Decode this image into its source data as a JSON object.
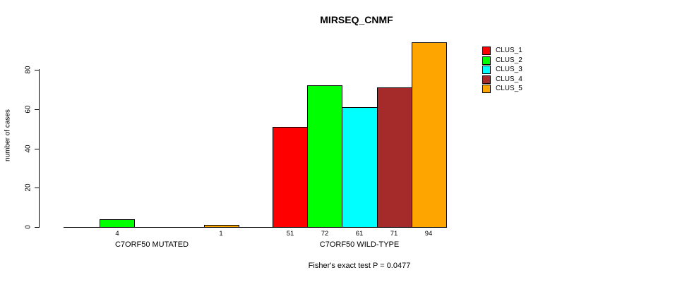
{
  "title": "MIRSEQ_CNMF",
  "y_axis": {
    "label": "number of cases",
    "ticks": [
      0,
      20,
      40,
      60,
      80
    ]
  },
  "footer": "Fisher's exact test P = 0.0477",
  "legend": {
    "items": [
      {
        "label": "CLUS_1",
        "color": "#FF0000"
      },
      {
        "label": "CLUS_2",
        "color": "#00FF00"
      },
      {
        "label": "CLUS_3",
        "color": "#00FFFF"
      },
      {
        "label": "CLUS_4",
        "color": "#A52A2A"
      },
      {
        "label": "CLUS_5",
        "color": "#FFA500"
      }
    ]
  },
  "chart_data": {
    "type": "bar",
    "title": "MIRSEQ_CNMF",
    "ylabel": "number of cases",
    "ylim": [
      0,
      94
    ],
    "yticks": [
      0,
      20,
      40,
      60,
      80
    ],
    "grid": false,
    "legend_position": "top-right",
    "series_names": [
      "CLUS_1",
      "CLUS_2",
      "CLUS_3",
      "CLUS_4",
      "CLUS_5"
    ],
    "series_colors": [
      "#FF0000",
      "#00FF00",
      "#00FFFF",
      "#A52A2A",
      "#FFA500"
    ],
    "groups": [
      {
        "label": "C7ORF50 MUTATED",
        "values": [
          0,
          4,
          0,
          0,
          1
        ],
        "value_labels": [
          "",
          "4",
          "",
          "",
          "1"
        ]
      },
      {
        "label": "C7ORF50 WILD-TYPE",
        "values": [
          51,
          72,
          61,
          71,
          94
        ],
        "value_labels": [
          "51",
          "72",
          "61",
          "71",
          "94"
        ]
      }
    ],
    "annotation": "Fisher's exact test P = 0.0477"
  }
}
